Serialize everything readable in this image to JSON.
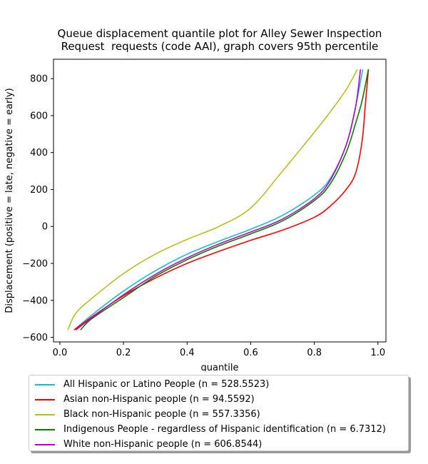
{
  "chart_data": {
    "type": "line",
    "title": "Queue displacement quantile plot for Alley Sewer Inspection\nRequest  requests (code AAI), graph covers 95th percentile",
    "xlabel": "quantile",
    "ylabel": "Displacement (positive = late, negative = early)",
    "xlim": [
      -0.02,
      1.025
    ],
    "ylim": [
      -625,
      905
    ],
    "xticks": [
      0.0,
      0.2,
      0.4,
      0.6,
      0.8,
      1.0
    ],
    "xtick_labels": [
      "0.0",
      "0.2",
      "0.4",
      "0.6",
      "0.8",
      "1.0"
    ],
    "yticks": [
      -600,
      -400,
      -200,
      0,
      200,
      400,
      600,
      800
    ],
    "ytick_labels": [
      "−600",
      "−400",
      "−200",
      "0",
      "200",
      "400",
      "600",
      "800"
    ],
    "grid": false,
    "legend_placement": "below",
    "series": [
      {
        "name": "All Hispanic or Latino People (n = 528.5523)",
        "color": "#17becf",
        "x": [
          0.045,
          0.1,
          0.2,
          0.3,
          0.4,
          0.5,
          0.6,
          0.7,
          0.8,
          0.85,
          0.9,
          0.93,
          0.952
        ],
        "y": [
          -560,
          -480,
          -350,
          -240,
          -150,
          -80,
          -15,
          60,
          170,
          260,
          440,
          650,
          850
        ]
      },
      {
        "name": "Asian non-Hispanic people (n = 94.5592)",
        "color": "#ff0000",
        "x": [
          0.045,
          0.1,
          0.2,
          0.3,
          0.4,
          0.5,
          0.6,
          0.7,
          0.8,
          0.85,
          0.9,
          0.93,
          0.95,
          0.96,
          0.97
        ],
        "y": [
          -560,
          -490,
          -375,
          -280,
          -200,
          -135,
          -75,
          -20,
          50,
          110,
          200,
          290,
          460,
          650,
          850
        ]
      },
      {
        "name": "Black non-Hispanic people (n = 557.3356)",
        "color": "#bcbd22",
        "x": [
          0.025,
          0.05,
          0.1,
          0.2,
          0.3,
          0.4,
          0.5,
          0.6,
          0.7,
          0.8,
          0.85,
          0.9,
          0.935
        ],
        "y": [
          -560,
          -470,
          -390,
          -255,
          -150,
          -70,
          0,
          100,
          300,
          510,
          620,
          740,
          850
        ]
      },
      {
        "name": "Indigenous People - regardless of Hispanic identification (n = 6.7312)",
        "color": "#008000",
        "x": [
          0.065,
          0.1,
          0.2,
          0.3,
          0.4,
          0.5,
          0.6,
          0.7,
          0.8,
          0.85,
          0.9,
          0.93,
          0.95,
          0.97
        ],
        "y": [
          -560,
          -500,
          -385,
          -270,
          -180,
          -105,
          -40,
          30,
          140,
          230,
          400,
          560,
          680,
          850
        ]
      },
      {
        "name": "White non-Hispanic people (n = 606.8544)",
        "color": "#bf00bf",
        "x": [
          0.05,
          0.1,
          0.2,
          0.3,
          0.4,
          0.5,
          0.6,
          0.7,
          0.8,
          0.85,
          0.9,
          0.93,
          0.945
        ],
        "y": [
          -560,
          -495,
          -370,
          -260,
          -170,
          -95,
          -30,
          40,
          150,
          250,
          440,
          650,
          850
        ]
      }
    ]
  }
}
